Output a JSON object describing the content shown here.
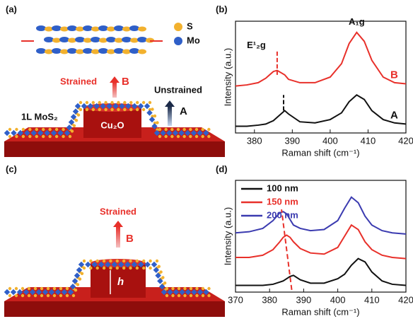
{
  "diagrams": [
    {
      "label": "(a)",
      "legend": [
        "S",
        "Mo"
      ],
      "strained": "Strained",
      "strained_state": "B",
      "unstrained": "Unstrained",
      "unstrained_state": "A",
      "layer": "1L MoS₂",
      "substrate": "Cu₂O"
    },
    {
      "label": "(c)",
      "strained": "Strained",
      "strained_state": "B",
      "height": "h"
    }
  ],
  "chart_data": [
    {
      "type": "line",
      "label": "(b)",
      "xlabel": "Raman shift (cm⁻¹)",
      "ylabel": "Intensity (a.u.)",
      "xlim": [
        375,
        420
      ],
      "xticks": [
        380,
        390,
        400,
        410,
        420
      ],
      "ylim": [
        0,
        1
      ],
      "x": [
        375,
        378,
        381,
        383,
        385,
        386,
        388,
        389,
        392,
        396,
        400,
        403,
        405,
        407,
        409,
        411,
        414,
        417,
        420
      ],
      "series": [
        {
          "name": "B",
          "color": "#e8302a",
          "values": [
            0.42,
            0.43,
            0.45,
            0.49,
            0.55,
            0.56,
            0.52,
            0.48,
            0.45,
            0.45,
            0.5,
            0.62,
            0.8,
            0.9,
            0.82,
            0.65,
            0.5,
            0.45,
            0.44
          ]
        },
        {
          "name": "A",
          "color": "#111111",
          "values": [
            0.06,
            0.06,
            0.07,
            0.08,
            0.11,
            0.14,
            0.2,
            0.17,
            0.1,
            0.09,
            0.12,
            0.18,
            0.28,
            0.34,
            0.3,
            0.2,
            0.12,
            0.09,
            0.08
          ]
        }
      ],
      "markers": [
        {
          "x": 386,
          "y": [
            0.52,
            0.74
          ],
          "color": "#e8302a"
        },
        {
          "x": 387.7,
          "y": [
            0.2,
            0.34
          ],
          "color": "#111111"
        }
      ],
      "annotations": [
        "E¹₂g",
        "A₁g"
      ]
    },
    {
      "type": "line",
      "label": "(d)",
      "xlabel": "Raman shift (cm⁻¹)",
      "ylabel": "Intensity (a.u.)",
      "xlim": [
        370,
        420
      ],
      "xticks": [
        370,
        380,
        390,
        400,
        410,
        420
      ],
      "ylim": [
        0,
        1
      ],
      "x": [
        370,
        374,
        378,
        381,
        383,
        384,
        385,
        386,
        387,
        389,
        392,
        396,
        400,
        402,
        404,
        406,
        408,
        410,
        413,
        416,
        420
      ],
      "series": [
        {
          "name": "100 nm",
          "color": "#111111",
          "values": [
            0.06,
            0.06,
            0.06,
            0.07,
            0.09,
            0.1,
            0.12,
            0.14,
            0.15,
            0.11,
            0.08,
            0.08,
            0.12,
            0.16,
            0.24,
            0.3,
            0.27,
            0.18,
            0.1,
            0.07,
            0.06
          ]
        },
        {
          "name": "150 nm",
          "color": "#e8302a",
          "values": [
            0.31,
            0.31,
            0.33,
            0.38,
            0.45,
            0.49,
            0.51,
            0.49,
            0.45,
            0.39,
            0.35,
            0.34,
            0.4,
            0.5,
            0.6,
            0.56,
            0.45,
            0.38,
            0.33,
            0.31,
            0.3
          ]
        },
        {
          "name": "200 nm",
          "color": "#3b3bb0",
          "values": [
            0.53,
            0.54,
            0.57,
            0.64,
            0.71,
            0.72,
            0.7,
            0.65,
            0.6,
            0.57,
            0.55,
            0.56,
            0.64,
            0.75,
            0.85,
            0.8,
            0.68,
            0.6,
            0.55,
            0.53,
            0.52
          ]
        }
      ],
      "trend_line": {
        "x": [
          386.5,
          383.5
        ],
        "y": [
          0.02,
          0.74
        ],
        "color": "#e8302a"
      }
    }
  ]
}
